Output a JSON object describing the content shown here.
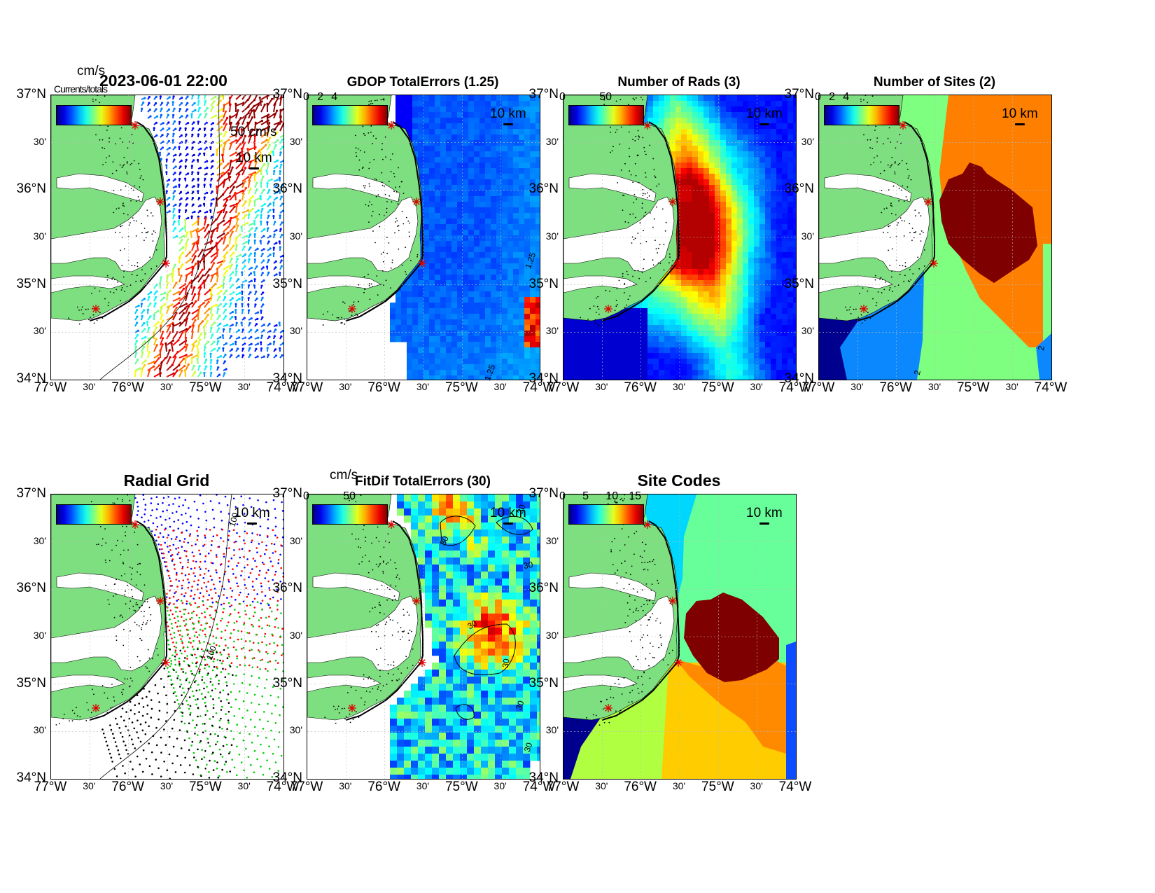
{
  "colors": {
    "land": "#7ddf7f",
    "coast": "#000000",
    "site_marker": "#e00000",
    "colormap": [
      "#00008f",
      "#0000ff",
      "#007fff",
      "#00ffff",
      "#7fff7f",
      "#ffff00",
      "#ff7f00",
      "#ff0000",
      "#7f0000"
    ]
  },
  "axes": {
    "lat_labels": [
      "37°N",
      "30'",
      "36°N",
      "30'",
      "35°N",
      "30'",
      "34°N"
    ],
    "lon_labels": [
      "77°W",
      "30'",
      "76°W",
      "30'",
      "75°W",
      "30'",
      "74°W"
    ]
  },
  "panels": {
    "totals": {
      "title": "2023-06-01 22:00",
      "units": "cm/s",
      "overlay_text": "Currents/totals",
      "vector_scale": "50 cm/s",
      "distance_scale": "10 km"
    },
    "gdop": {
      "title": "GDOP TotalErrors (1.25)",
      "colorbar_ticks": [
        "0",
        "2",
        "4"
      ],
      "distance_scale": "10 km",
      "contour_labels": [
        "1.25",
        "1.25"
      ]
    },
    "nrads": {
      "title": "Number of Rads (3)",
      "colorbar_ticks": [
        "0",
        "50"
      ],
      "distance_scale": "10 km"
    },
    "nsites": {
      "title": "Number of Sites (2)",
      "colorbar_ticks": [
        "0",
        "2",
        "4"
      ],
      "distance_scale": "10 km",
      "contour_labels": [
        "2",
        "2"
      ]
    },
    "radial_grid": {
      "title": "Radial Grid",
      "contour_labels": [
        "100",
        "100"
      ],
      "distance_scale": "10 km",
      "site_colors": [
        "#0000ff",
        "#ff0000",
        "#00cc00",
        "#000000"
      ]
    },
    "fitdif": {
      "title": "FitDif TotalErrors (30)",
      "units": "cm/s",
      "colorbar_ticks": [
        "0",
        "50"
      ],
      "distance_scale": "10 km",
      "contour_labels": [
        "30",
        "30",
        "30",
        "30",
        "30",
        "30",
        "30"
      ]
    },
    "sitecodes": {
      "title": "Site Codes",
      "colorbar_ticks": [
        "0",
        "5",
        "10",
        "15"
      ],
      "distance_scale": "10 km"
    }
  }
}
